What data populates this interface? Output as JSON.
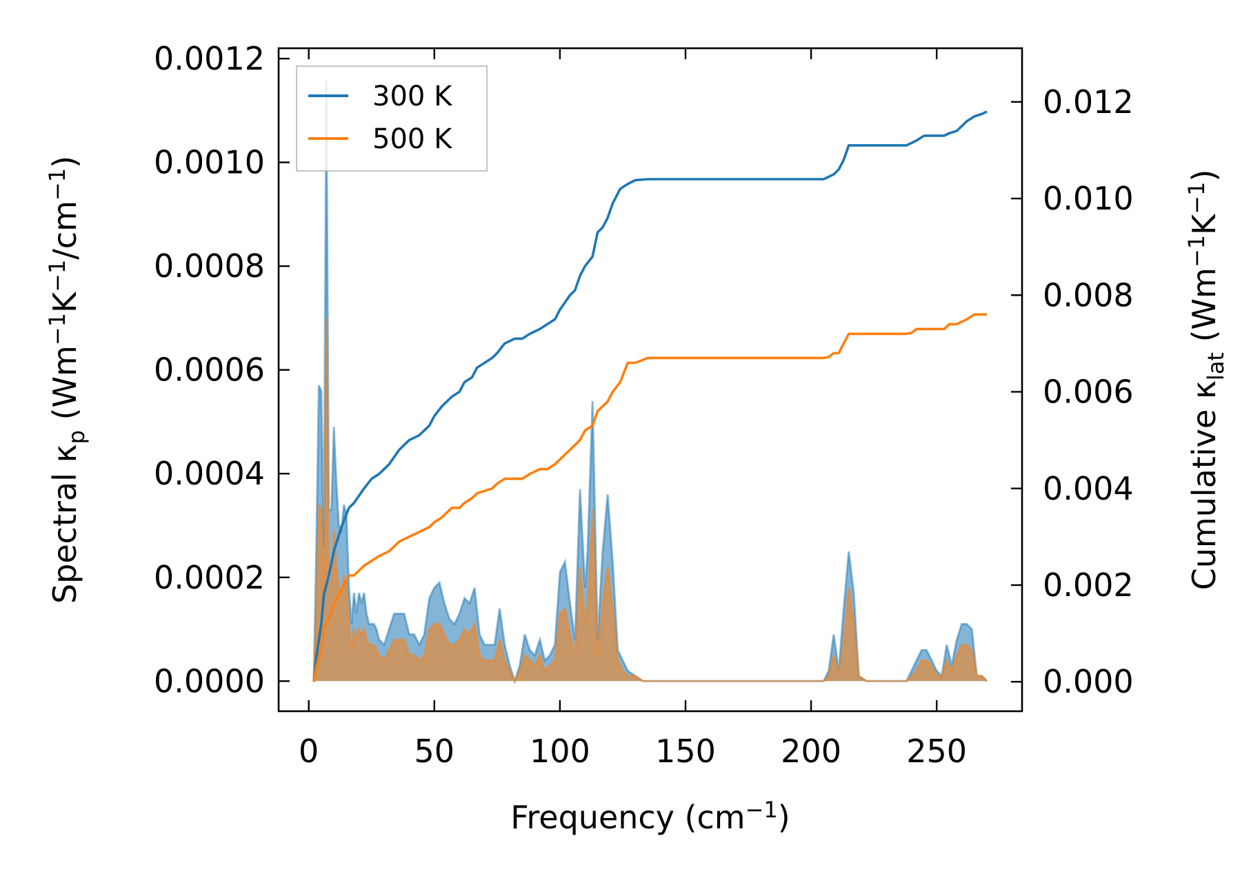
{
  "chart_data": {
    "type": "line",
    "xlabel": {
      "main": "Frequency (cm",
      "sup": "−1",
      "close": ")"
    },
    "ylabel_left": {
      "parts": [
        {
          "t": "Spectral κ",
          "s": "n"
        },
        {
          "t": "p",
          "s": "sub"
        },
        {
          "t": " (Wm",
          "s": "n"
        },
        {
          "t": "−1",
          "s": "sup"
        },
        {
          "t": "K",
          "s": "n"
        },
        {
          "t": "−1",
          "s": "sup"
        },
        {
          "t": "/cm",
          "s": "n"
        },
        {
          "t": "−1",
          "s": "sup"
        },
        {
          "t": ")",
          "s": "n"
        }
      ]
    },
    "ylabel_right": {
      "parts": [
        {
          "t": "Cumulative κ",
          "s": "n"
        },
        {
          "t": "lat",
          "s": "sub"
        },
        {
          "t": " (Wm",
          "s": "n"
        },
        {
          "t": "−1",
          "s": "sup"
        },
        {
          "t": "K",
          "s": "n"
        },
        {
          "t": "−1",
          "s": "sup"
        },
        {
          "t": ")",
          "s": "n"
        }
      ]
    },
    "xlim": [
      -12,
      284
    ],
    "ylim_left": [
      -5.8e-05,
      0.00122
    ],
    "ylim_right": [
      -0.00061,
      0.01311
    ],
    "x_ticks": [
      0,
      50,
      100,
      150,
      200,
      250
    ],
    "x_tick_labels": [
      "0",
      "50",
      "100",
      "150",
      "200",
      "250"
    ],
    "y_left_ticks": [
      0,
      0.0002,
      0.0004,
      0.0006,
      0.0008,
      0.001,
      0.0012
    ],
    "y_left_tick_labels": [
      "0.0000",
      "0.0002",
      "0.0004",
      "0.0006",
      "0.0008",
      "0.0010",
      "0.0012"
    ],
    "y_right_ticks": [
      0,
      0.002,
      0.004,
      0.006,
      0.008,
      0.01,
      0.012
    ],
    "y_right_tick_labels": [
      "0.000",
      "0.002",
      "0.004",
      "0.006",
      "0.008",
      "0.010",
      "0.012"
    ],
    "legend_position": "top-left",
    "grid": false,
    "series": [
      {
        "name": "300 K",
        "color": "#1f77b4",
        "cumulative": {
          "x": [
            2,
            3,
            5,
            6,
            8,
            10,
            13,
            16,
            18,
            22,
            25,
            28,
            32,
            36,
            40,
            44,
            48,
            50,
            53,
            55,
            57,
            60,
            62,
            65,
            67,
            70,
            73,
            75,
            78,
            82,
            85,
            88,
            92,
            95,
            98,
            100,
            104,
            106,
            108,
            110,
            113,
            115,
            117,
            119,
            121,
            124,
            127,
            130,
            135,
            150,
            180,
            205,
            207,
            209,
            211,
            213,
            215,
            218,
            222,
            230,
            238,
            240,
            242,
            245,
            250,
            253,
            255,
            258,
            262,
            265,
            268,
            270
          ],
          "y": [
            0,
            0.0005,
            0.0012,
            0.0018,
            0.0022,
            0.0027,
            0.0032,
            0.0036,
            0.0037,
            0.004,
            0.0042,
            0.0043,
            0.0045,
            0.0048,
            0.005,
            0.0051,
            0.0053,
            0.0055,
            0.0057,
            0.0058,
            0.0059,
            0.006,
            0.0062,
            0.0063,
            0.0065,
            0.0066,
            0.0067,
            0.0068,
            0.007,
            0.0071,
            0.0071,
            0.0072,
            0.0073,
            0.0074,
            0.0075,
            0.0077,
            0.008,
            0.0081,
            0.0084,
            0.0086,
            0.0088,
            0.0093,
            0.0094,
            0.0096,
            0.0099,
            0.0102,
            0.0103,
            0.01038,
            0.0104,
            0.0104,
            0.0104,
            0.0104,
            0.01045,
            0.0105,
            0.0106,
            0.0108,
            0.0111,
            0.0111,
            0.0111,
            0.0111,
            0.0111,
            0.01115,
            0.0112,
            0.0113,
            0.0113,
            0.0113,
            0.01135,
            0.0114,
            0.0116,
            0.0117,
            0.01175,
            0.0118
          ]
        },
        "spectral": {
          "x": [
            2,
            3,
            4,
            5,
            6,
            7,
            8,
            9,
            10,
            11,
            12,
            13,
            14,
            15,
            16,
            17,
            18,
            19,
            20,
            21,
            22,
            23,
            24,
            25,
            26,
            27,
            28,
            30,
            32,
            34,
            36,
            38,
            40,
            42,
            44,
            46,
            48,
            50,
            52,
            54,
            56,
            58,
            60,
            62,
            64,
            66,
            68,
            70,
            72,
            74,
            76,
            78,
            80,
            82,
            84,
            86,
            88,
            90,
            92,
            94,
            96,
            98,
            100,
            102,
            104,
            106,
            108,
            110,
            111,
            113,
            115,
            117,
            119,
            121,
            123,
            125,
            127,
            130,
            133,
            140,
            160,
            180,
            200,
            205,
            207,
            209,
            211,
            213,
            215,
            217,
            219,
            222,
            230,
            238,
            240,
            242,
            244,
            246,
            248,
            250,
            252,
            254,
            256,
            258,
            260,
            262,
            264,
            266,
            268,
            270
          ],
          "y": [
            0,
            0.00025,
            0.00057,
            0.00056,
            0.00026,
            0.00116,
            0.00033,
            0.00033,
            0.00049,
            0.00038,
            0.0003,
            0.00029,
            0.00034,
            0.00032,
            0.00018,
            0.00011,
            0.00017,
            0.00013,
            0.00017,
            0.00015,
            0.00017,
            0.00013,
            0.00011,
            0.00011,
            0.00011,
            0.0001,
            8e-05,
            7e-05,
            0.0001,
            0.00013,
            0.00013,
            0.00013,
            9e-05,
            9e-05,
            7e-05,
            9e-05,
            0.00016,
            0.00018,
            0.00019,
            0.00015,
            0.00012,
            0.00011,
            0.00013,
            0.00016,
            0.00015,
            0.00018,
            9e-05,
            7e-05,
            7e-05,
            7e-05,
            0.00014,
            7e-05,
            3e-05,
            0.0,
            3e-05,
            9e-05,
            6e-05,
            5e-05,
            8e-05,
            4e-05,
            5e-05,
            7e-05,
            0.00021,
            0.00023,
            0.00015,
            8e-05,
            0.00037,
            0.00018,
            0.00025,
            0.00054,
            8e-05,
            0.00025,
            0.00036,
            0.00023,
            6e-05,
            4e-05,
            2e-05,
            1e-05,
            0.0,
            0.0,
            0.0,
            0.0,
            0.0,
            0.0,
            2e-05,
            9e-05,
            2e-05,
            0.00014,
            0.00025,
            0.00017,
            1e-05,
            0.0,
            0.0,
            0.0,
            2e-05,
            4e-05,
            6e-05,
            6e-05,
            4e-05,
            2e-05,
            1e-05,
            7e-05,
            3e-05,
            8e-05,
            0.00011,
            0.00011,
            0.0001,
            1e-05,
            1e-05,
            0.0
          ]
        }
      },
      {
        "name": "500 K",
        "color": "#ff7f0e",
        "cumulative": {
          "x": [
            2,
            3,
            5,
            6,
            8,
            10,
            13,
            16,
            18,
            22,
            25,
            28,
            32,
            36,
            40,
            44,
            48,
            50,
            53,
            55,
            57,
            60,
            62,
            65,
            67,
            70,
            73,
            75,
            78,
            82,
            85,
            88,
            92,
            95,
            98,
            100,
            104,
            106,
            108,
            110,
            113,
            115,
            117,
            119,
            121,
            124,
            127,
            130,
            135,
            150,
            180,
            205,
            207,
            209,
            211,
            213,
            215,
            218,
            222,
            230,
            238,
            240,
            242,
            245,
            250,
            253,
            255,
            258,
            262,
            265,
            268,
            270
          ],
          "y": [
            0,
            0.0003,
            0.0007,
            0.0011,
            0.0013,
            0.0016,
            0.0019,
            0.0022,
            0.0022,
            0.0024,
            0.0025,
            0.0026,
            0.0027,
            0.0029,
            0.003,
            0.0031,
            0.0032,
            0.0033,
            0.0034,
            0.0035,
            0.0036,
            0.0036,
            0.0037,
            0.0038,
            0.0039,
            0.00395,
            0.004,
            0.0041,
            0.0042,
            0.0042,
            0.0042,
            0.0043,
            0.0044,
            0.0044,
            0.0045,
            0.0046,
            0.0048,
            0.0049,
            0.005,
            0.0052,
            0.0053,
            0.0056,
            0.0057,
            0.0058,
            0.006,
            0.0062,
            0.0066,
            0.0066,
            0.0067,
            0.0067,
            0.0067,
            0.0067,
            0.00672,
            0.0068,
            0.0068,
            0.007,
            0.0072,
            0.0072,
            0.0072,
            0.0072,
            0.0072,
            0.00722,
            0.0073,
            0.0073,
            0.0073,
            0.0073,
            0.0074,
            0.0074,
            0.0075,
            0.0076,
            0.0076,
            0.0076
          ]
        },
        "spectral": {
          "x": [
            2,
            3,
            4,
            5,
            6,
            7,
            8,
            9,
            10,
            11,
            12,
            13,
            14,
            15,
            16,
            17,
            18,
            19,
            20,
            21,
            22,
            23,
            24,
            25,
            26,
            27,
            28,
            30,
            32,
            34,
            36,
            38,
            40,
            42,
            44,
            46,
            48,
            50,
            52,
            54,
            56,
            58,
            60,
            62,
            64,
            66,
            68,
            70,
            72,
            74,
            76,
            78,
            80,
            82,
            84,
            86,
            88,
            90,
            92,
            94,
            96,
            98,
            100,
            102,
            104,
            106,
            108,
            110,
            111,
            113,
            115,
            117,
            119,
            121,
            123,
            125,
            127,
            130,
            133,
            140,
            160,
            180,
            200,
            205,
            207,
            209,
            211,
            213,
            215,
            217,
            219,
            222,
            230,
            238,
            240,
            242,
            244,
            246,
            248,
            250,
            252,
            254,
            256,
            258,
            260,
            262,
            264,
            266,
            268,
            270
          ],
          "y": [
            0,
            0.00014,
            0.00034,
            0.00033,
            0.00015,
            0.0007,
            0.00019,
            0.00019,
            0.00029,
            0.00022,
            0.00018,
            0.00017,
            0.0002,
            0.00019,
            0.00011,
            6e-05,
            0.0001,
            8e-05,
            0.0001,
            9e-05,
            0.0001,
            8e-05,
            7e-05,
            7e-05,
            7e-05,
            6e-05,
            5e-05,
            4e-05,
            6e-05,
            8e-05,
            8e-05,
            8e-05,
            5e-05,
            5e-05,
            4e-05,
            5e-05,
            0.0001,
            0.00011,
            0.00011,
            9e-05,
            7e-05,
            7e-05,
            8e-05,
            0.0001,
            9e-05,
            0.00011,
            5e-05,
            4e-05,
            4e-05,
            4e-05,
            8e-05,
            4e-05,
            2e-05,
            0.0,
            2e-05,
            5e-05,
            4e-05,
            3e-05,
            5e-05,
            2e-05,
            3e-05,
            4e-05,
            0.00013,
            0.00014,
            9e-05,
            5e-05,
            0.00022,
            0.00011,
            0.00015,
            0.00033,
            5e-05,
            0.00015,
            0.00022,
            0.00014,
            4e-05,
            2e-05,
            1e-05,
            1e-05,
            0.0,
            0.0,
            0.0,
            0.0,
            0.0,
            0.0,
            1e-05,
            5e-05,
            1e-05,
            8e-05,
            0.00018,
            0.00011,
            1e-05,
            0.0,
            0.0,
            0.0,
            1e-05,
            2e-05,
            4e-05,
            4e-05,
            3e-05,
            1e-05,
            1e-05,
            4e-05,
            2e-05,
            5e-05,
            7e-05,
            7e-05,
            6e-05,
            1e-05,
            1e-05,
            0.0
          ]
        }
      }
    ]
  }
}
